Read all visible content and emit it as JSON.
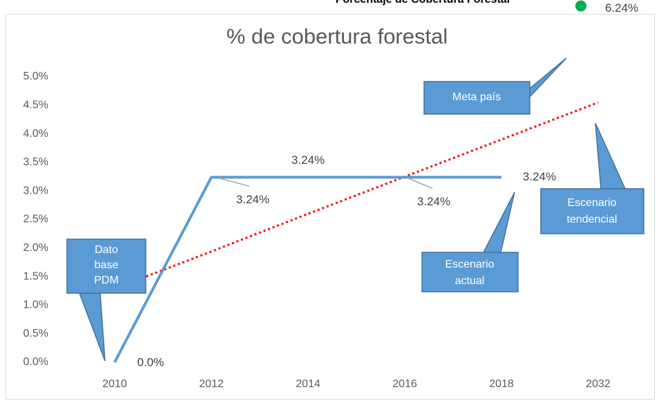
{
  "chart_data": {
    "type": "line",
    "header": "Porcentaje de Cobertura Forestal",
    "title": "% de cobertura forestal",
    "categories": [
      "2010",
      "2012",
      "2014",
      "2016",
      "2018",
      "2032"
    ],
    "series": [
      {
        "name": "Escenario actual",
        "color": "#5b9bd5",
        "values": [
          0,
          3.24,
          3.24,
          3.24,
          3.24,
          null
        ],
        "value_labels": [
          "0.0%",
          "3.24%",
          "3.24%",
          "3.24%",
          "3.24%",
          null
        ]
      },
      {
        "name": "Escenario tendencial",
        "color": "#ff0000",
        "dash": true,
        "values": [
          1.29,
          1.94,
          2.6,
          3.25,
          3.9,
          4.55
        ]
      }
    ],
    "target": {
      "value": 6.24,
      "label": "6.24%",
      "color": "#00b050"
    },
    "ylim": [
      0,
      5
    ],
    "yticks": [
      {
        "value": 0,
        "label": "0.0%"
      },
      {
        "value": 0.5,
        "label": "0.5%"
      },
      {
        "value": 1,
        "label": "1.0%"
      },
      {
        "value": 1.5,
        "label": "1.5%"
      },
      {
        "value": 2,
        "label": "2.0%"
      },
      {
        "value": 2.5,
        "label": "2.5%"
      },
      {
        "value": 3,
        "label": "3.0%"
      },
      {
        "value": 3.5,
        "label": "3.5%"
      },
      {
        "value": 4,
        "label": "4.0%"
      },
      {
        "value": 4.5,
        "label": "4.5%"
      },
      {
        "value": 5,
        "label": "5.0%"
      }
    ],
    "grid": false,
    "annotations": [
      {
        "lines": [
          "Meta país"
        ]
      },
      {
        "lines": [
          "Escenario",
          "tendencial"
        ]
      },
      {
        "lines": [
          "Escenario",
          "actual"
        ]
      },
      {
        "lines": [
          "Dato",
          "base",
          "PDM"
        ]
      }
    ]
  }
}
